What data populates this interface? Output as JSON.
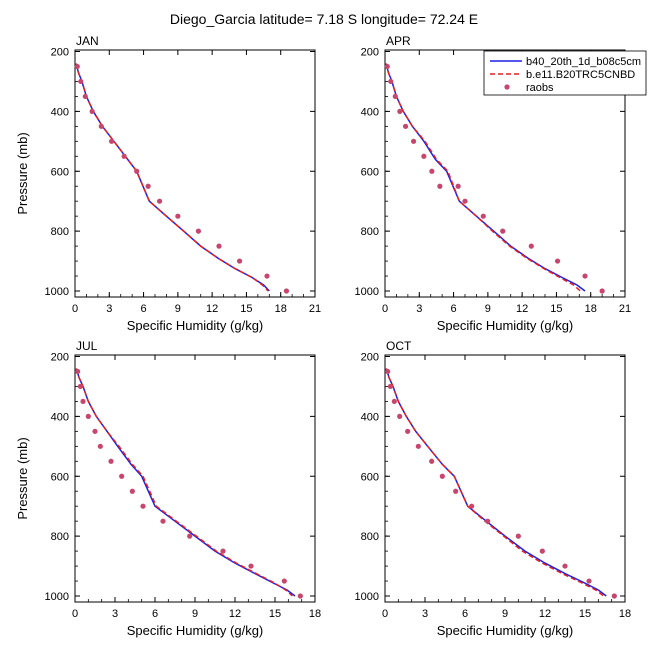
{
  "title": "Diego_Garcia  latitude= 7.18 S longitude= 72.24 E",
  "legend": {
    "entries": [
      {
        "label": "b40_20th_1d_b08c5cm",
        "style": "solid",
        "color": "#1f1fe6"
      },
      {
        "label": "b.e11.B20TRC5CNBD",
        "style": "dashed",
        "color": "#e61f1f"
      },
      {
        "label": "raobs",
        "style": "marker",
        "color": "#c8456e"
      }
    ]
  },
  "chart_data": [
    {
      "type": "line",
      "panel": "JAN",
      "xlabel": "Specific Humidity (g/kg)",
      "ylabel": "Pressure (mb)",
      "xlim": [
        0,
        21
      ],
      "ylim": [
        1020,
        195
      ],
      "y_reversed": true,
      "xticks": [
        0,
        3,
        6,
        9,
        12,
        15,
        18,
        21
      ],
      "yticks": [
        200,
        400,
        600,
        800,
        1000
      ],
      "series": [
        {
          "name": "b40_20th_1d_b08c5cm",
          "x": [
            0.1,
            0.3,
            0.6,
            1.0,
            1.6,
            2.4,
            3.4,
            4.6,
            5.4,
            6.5,
            8.0,
            9.5,
            11.0,
            12.5,
            14.0,
            15.5,
            16.5,
            17.0
          ],
          "y": [
            240,
            270,
            300,
            350,
            400,
            450,
            500,
            560,
            600,
            700,
            750,
            800,
            850,
            890,
            925,
            955,
            980,
            1000
          ]
        },
        {
          "name": "b.e11.B20TRC5CNBD",
          "x": [
            0.1,
            0.3,
            0.6,
            1.0,
            1.6,
            2.4,
            3.4,
            4.6,
            5.4,
            6.5,
            8.0,
            9.5,
            11.0,
            12.5,
            14.0,
            15.5,
            16.4,
            16.9
          ],
          "y": [
            240,
            270,
            300,
            350,
            400,
            450,
            500,
            560,
            600,
            700,
            750,
            800,
            850,
            890,
            925,
            955,
            980,
            1000
          ]
        },
        {
          "name": "raobs",
          "x": [
            0.2,
            0.5,
            0.9,
            1.5,
            2.3,
            3.2,
            4.3,
            5.4,
            6.4,
            7.4,
            9.0,
            10.8,
            12.6,
            14.4,
            16.8,
            18.5
          ],
          "y": [
            250,
            300,
            350,
            400,
            450,
            500,
            550,
            600,
            650,
            700,
            750,
            800,
            850,
            900,
            950,
            1000
          ]
        }
      ]
    },
    {
      "type": "line",
      "panel": "APR",
      "xlabel": "Specific Humidity (g/kg)",
      "ylabel": "",
      "xlim": [
        0,
        21
      ],
      "ylim": [
        1020,
        195
      ],
      "y_reversed": true,
      "xticks": [
        0,
        3,
        6,
        9,
        12,
        15,
        18,
        21
      ],
      "yticks": [
        200,
        400,
        600,
        800,
        1000
      ],
      "series": [
        {
          "name": "b40_20th_1d_b08c5cm",
          "x": [
            0.1,
            0.3,
            0.6,
            1.0,
            1.6,
            2.4,
            3.4,
            4.4,
            5.4,
            6.5,
            8.0,
            9.5,
            11.0,
            12.5,
            14.0,
            15.5,
            16.8,
            17.5
          ],
          "y": [
            240,
            270,
            300,
            350,
            400,
            450,
            500,
            560,
            600,
            700,
            750,
            800,
            850,
            890,
            925,
            955,
            980,
            1000
          ]
        },
        {
          "name": "b.e11.B20TRC5CNBD",
          "x": [
            0.1,
            0.3,
            0.6,
            1.0,
            1.6,
            2.4,
            3.5,
            4.5,
            5.5,
            6.5,
            8.0,
            9.4,
            10.9,
            12.4,
            13.9,
            15.3,
            16.5,
            17.1
          ],
          "y": [
            240,
            270,
            300,
            350,
            400,
            450,
            500,
            560,
            600,
            700,
            750,
            800,
            850,
            890,
            925,
            955,
            980,
            1000
          ]
        },
        {
          "name": "raobs",
          "x": [
            0.2,
            0.5,
            0.9,
            1.3,
            1.8,
            2.5,
            3.4,
            4.1,
            4.8,
            6.4,
            7.0,
            8.6,
            10.3,
            12.8,
            15.1,
            17.5,
            19.0
          ],
          "y": [
            250,
            300,
            350,
            400,
            450,
            500,
            550,
            600,
            650,
            650,
            700,
            750,
            800,
            850,
            900,
            950,
            1000
          ]
        }
      ]
    },
    {
      "type": "line",
      "panel": "JUL",
      "xlabel": "Specific Humidity (g/kg)",
      "ylabel": "Pressure (mb)",
      "xlim": [
        0,
        18
      ],
      "ylim": [
        1020,
        195
      ],
      "y_reversed": true,
      "xticks": [
        0,
        3,
        6,
        9,
        12,
        15,
        18
      ],
      "yticks": [
        200,
        400,
        600,
        800,
        1000
      ],
      "series": [
        {
          "name": "b40_20th_1d_b08c5cm",
          "x": [
            0.1,
            0.3,
            0.6,
            1.0,
            1.6,
            2.4,
            3.2,
            4.2,
            5.0,
            6.0,
            7.5,
            9.0,
            10.5,
            12.0,
            13.5,
            14.8,
            15.9,
            16.5
          ],
          "y": [
            240,
            270,
            300,
            350,
            400,
            450,
            500,
            560,
            600,
            700,
            750,
            800,
            850,
            890,
            925,
            955,
            980,
            1000
          ]
        },
        {
          "name": "b.e11.B20TRC5CNBD",
          "x": [
            0.1,
            0.3,
            0.6,
            1.0,
            1.6,
            2.4,
            3.3,
            4.3,
            5.1,
            6.1,
            7.6,
            9.1,
            10.6,
            12.1,
            13.6,
            14.9,
            15.8,
            16.3
          ],
          "y": [
            240,
            270,
            300,
            350,
            400,
            450,
            500,
            560,
            600,
            700,
            750,
            800,
            850,
            890,
            925,
            955,
            980,
            1000
          ]
        },
        {
          "name": "raobs",
          "x": [
            0.2,
            0.4,
            0.6,
            1.0,
            1.5,
            1.9,
            2.7,
            3.5,
            4.3,
            5.1,
            6.6,
            8.6,
            11.1,
            13.2,
            15.7,
            16.9
          ],
          "y": [
            250,
            300,
            350,
            400,
            450,
            500,
            550,
            600,
            650,
            700,
            750,
            800,
            850,
            900,
            950,
            1000
          ]
        }
      ]
    },
    {
      "type": "line",
      "panel": "OCT",
      "xlabel": "Specific Humidity (g/kg)",
      "ylabel": "",
      "xlim": [
        0,
        18
      ],
      "ylim": [
        1020,
        195
      ],
      "y_reversed": true,
      "xticks": [
        0,
        3,
        6,
        9,
        12,
        15,
        18
      ],
      "yticks": [
        200,
        400,
        600,
        800,
        1000
      ],
      "series": [
        {
          "name": "b40_20th_1d_b08c5cm",
          "x": [
            0.1,
            0.3,
            0.6,
            1.0,
            1.6,
            2.3,
            3.2,
            4.3,
            5.2,
            6.2,
            7.6,
            9.0,
            10.5,
            12.0,
            13.5,
            14.9,
            16.0,
            16.6
          ],
          "y": [
            240,
            270,
            300,
            350,
            400,
            450,
            500,
            560,
            600,
            700,
            750,
            800,
            850,
            890,
            925,
            955,
            980,
            1000
          ]
        },
        {
          "name": "b.e11.B20TRC5CNBD",
          "x": [
            0.1,
            0.3,
            0.6,
            1.0,
            1.6,
            2.3,
            3.2,
            4.3,
            5.2,
            6.2,
            7.5,
            8.9,
            10.3,
            11.8,
            13.3,
            14.7,
            15.8,
            16.4
          ],
          "y": [
            240,
            270,
            300,
            350,
            400,
            450,
            500,
            560,
            600,
            700,
            750,
            800,
            850,
            890,
            925,
            955,
            980,
            1000
          ]
        },
        {
          "name": "raobs",
          "x": [
            0.2,
            0.4,
            0.7,
            1.1,
            1.7,
            2.5,
            3.5,
            4.3,
            5.3,
            6.5,
            7.7,
            10.0,
            11.8,
            13.5,
            15.3,
            17.2
          ],
          "y": [
            250,
            300,
            350,
            400,
            450,
            500,
            550,
            600,
            650,
            700,
            750,
            800,
            850,
            900,
            950,
            1000
          ]
        }
      ]
    }
  ]
}
